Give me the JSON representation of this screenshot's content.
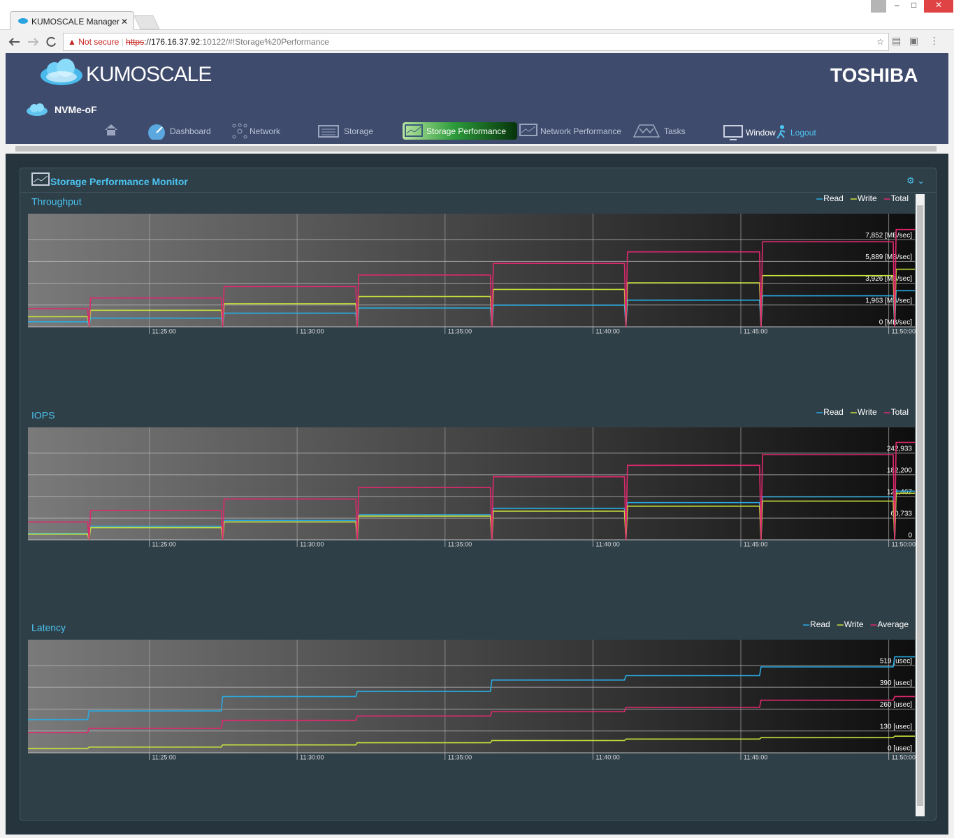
{
  "browser": {
    "tab_title": "KUMOSCALE Manager",
    "security": "Not secure",
    "url_scheme": "https",
    "url_host": "://176.16.37.92",
    "url_path": ":10122/#!Storage%20Performance"
  },
  "header": {
    "brand": "KUMOSCALE",
    "company": "TOSHIBA",
    "product": "NVMe-oF"
  },
  "nav": {
    "items": [
      "Dashboard",
      "Network",
      "Storage",
      "Storage Performance",
      "Network Performance",
      "Tasks",
      "Window"
    ],
    "logout": "Logout"
  },
  "panel": {
    "title": "Storage Performance Monitor"
  },
  "chart_data": [
    {
      "type": "line",
      "title": "Throughput",
      "x": [
        "11:20:54",
        "11:22:55",
        "11:22:58",
        "11:23:01",
        "11:27:26",
        "11:27:29",
        "11:27:32",
        "11:31:59",
        "11:32:02",
        "11:32:05",
        "11:36:32",
        "11:36:35",
        "11:36:38",
        "11:41:04",
        "11:41:07",
        "11:41:10",
        "11:45:38",
        "11:45:41",
        "11:45:44",
        "11:50:09",
        "11:50:12",
        "11:50:15",
        "11:50:53"
      ],
      "xlim": [
        "11:20:54",
        "11:50:53"
      ],
      "xticks": [
        "11:25:00",
        "11:30:00",
        "11:35:00",
        "11:40:00",
        "11:45:00",
        "11:50:00"
      ],
      "ylim": [
        0,
        10190
      ],
      "yticks": [
        {
          "value": 0,
          "label": "0 [MB/sec]"
        },
        {
          "value": 1963,
          "label": "1,963 [MB/sec]"
        },
        {
          "value": 3926,
          "label": "3,926 [MB/sec]"
        },
        {
          "value": 5889,
          "label": "5,889 [MB/sec]"
        },
        {
          "value": 7852,
          "label": "7,852 [MB/sec]"
        }
      ],
      "grid": true,
      "series": [
        {
          "name": "Read",
          "color": "#29abe2",
          "values": [
            450,
            450,
            0,
            780,
            780,
            0,
            1230,
            1230,
            0,
            1690,
            1690,
            0,
            1950,
            1950,
            0,
            2400,
            2400,
            0,
            2790,
            2790,
            0,
            3250,
            3250
          ]
        },
        {
          "name": "Write",
          "color": "#c8e03c",
          "values": [
            910,
            910,
            0,
            1490,
            1490,
            0,
            2080,
            2080,
            0,
            2730,
            2730,
            0,
            3370,
            3370,
            0,
            3960,
            3960,
            0,
            4610,
            4610,
            0,
            5190,
            5190
          ]
        },
        {
          "name": "Total",
          "color": "#e0286e",
          "values": [
            1620,
            1620,
            0,
            2600,
            2600,
            0,
            3630,
            3630,
            0,
            4670,
            4670,
            0,
            5710,
            5710,
            0,
            6750,
            6750,
            0,
            7660,
            7660,
            0,
            8760,
            8760
          ]
        }
      ]
    },
    {
      "type": "line",
      "title": "IOPS",
      "x": [
        "11:20:54",
        "11:22:55",
        "11:22:58",
        "11:23:01",
        "11:27:26",
        "11:27:29",
        "11:27:32",
        "11:31:59",
        "11:32:02",
        "11:32:05",
        "11:36:32",
        "11:36:35",
        "11:36:38",
        "11:41:04",
        "11:41:07",
        "11:41:10",
        "11:45:38",
        "11:45:41",
        "11:45:44",
        "11:50:09",
        "11:50:12",
        "11:50:15",
        "11:50:53"
      ],
      "xlim": [
        "11:20:54",
        "11:50:53"
      ],
      "xticks": [
        "11:25:00",
        "11:30:00",
        "11:35:00",
        "11:40:00",
        "11:45:00",
        "11:50:00"
      ],
      "ylim": [
        0,
        315200
      ],
      "yticks": [
        0,
        {
          "value": 60733,
          "label": "60,733"
        },
        {
          "value": 121467,
          "label": "121,467"
        },
        {
          "value": 182200,
          "label": "182,200"
        },
        {
          "value": 242933,
          "label": "242,933"
        }
      ],
      "grid": true,
      "series": [
        {
          "name": "Read",
          "color": "#29abe2",
          "values": [
            18100,
            18100,
            0,
            38200,
            38200,
            0,
            54200,
            54200,
            0,
            70300,
            70300,
            0,
            88300,
            88300,
            0,
            104400,
            104400,
            0,
            120500,
            120500,
            0,
            136500,
            136500
          ]
        },
        {
          "name": "Write",
          "color": "#c8e03c",
          "values": [
            16100,
            16100,
            0,
            34100,
            34100,
            0,
            50200,
            50200,
            0,
            66300,
            66300,
            0,
            80300,
            80300,
            0,
            94400,
            94400,
            0,
            108400,
            108400,
            0,
            130500,
            130500
          ]
        },
        {
          "name": "Total",
          "color": "#e0286e",
          "values": [
            50200,
            50200,
            0,
            82300,
            82300,
            0,
            114400,
            114400,
            0,
            146600,
            146600,
            0,
            176700,
            176700,
            0,
            208800,
            208800,
            0,
            238900,
            238900,
            0,
            273100,
            273100
          ]
        }
      ]
    },
    {
      "type": "line",
      "title": "Latency",
      "x": [
        "11:20:54",
        "11:22:55",
        "11:22:58",
        "11:23:01",
        "11:27:26",
        "11:27:29",
        "11:27:32",
        "11:31:59",
        "11:32:02",
        "11:32:05",
        "11:36:32",
        "11:36:35",
        "11:36:38",
        "11:41:04",
        "11:41:07",
        "11:41:10",
        "11:45:38",
        "11:45:41",
        "11:45:44",
        "11:50:09",
        "11:50:12",
        "11:50:15",
        "11:50:53"
      ],
      "xlim": [
        "11:20:54",
        "11:50:53"
      ],
      "xticks": [
        "11:25:00",
        "11:30:00",
        "11:35:00",
        "11:40:00",
        "11:45:00",
        "11:50:00"
      ],
      "ylim": [
        0,
        673
      ],
      "yticks": [
        {
          "value": 0,
          "label": "0 [usec]"
        },
        {
          "value": 130,
          "label": "130 [usec]"
        },
        {
          "value": 260,
          "label": "260 [usec]"
        },
        {
          "value": 390,
          "label": "390 [usec]"
        },
        {
          "value": 519,
          "label": "519 [usec]"
        }
      ],
      "grid": true,
      "series": [
        {
          "name": "Read",
          "color": "#29abe2",
          "values": [
            197,
            197,
            249,
            249,
            249,
            335,
            335,
            335,
            365,
            365,
            365,
            433,
            433,
            433,
            459,
            459,
            459,
            511,
            511,
            511,
            571,
            571,
            571
          ]
        },
        {
          "name": "Write",
          "color": "#c8e03c",
          "values": [
            26,
            26,
            34,
            34,
            34,
            47,
            47,
            47,
            60,
            60,
            60,
            73,
            73,
            73,
            82,
            82,
            82,
            90,
            90,
            90,
            99,
            99,
            99
          ]
        },
        {
          "name": "Average",
          "color": "#e0286e",
          "values": [
            120,
            120,
            146,
            146,
            146,
            193,
            193,
            193,
            219,
            219,
            219,
            245,
            245,
            245,
            270,
            270,
            270,
            313,
            313,
            313,
            335,
            335,
            335
          ]
        }
      ]
    }
  ]
}
